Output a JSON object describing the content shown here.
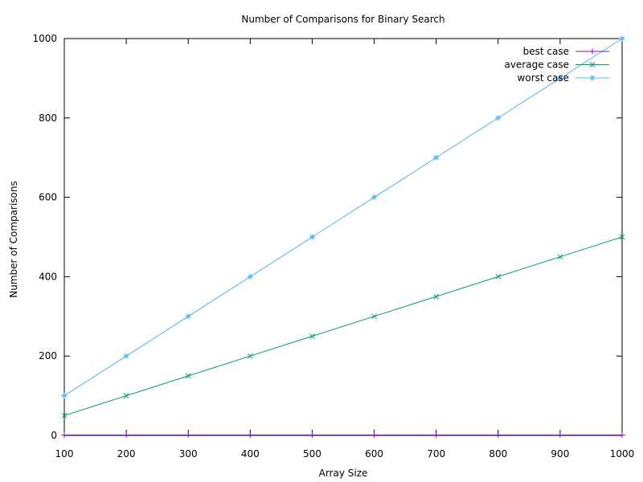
{
  "chart_data": {
    "type": "line",
    "title": "Number of Comparisons for Binary Search",
    "xlabel": "Array Size",
    "ylabel": "Number of Comparisons",
    "xlim": [
      100,
      1000
    ],
    "ylim": [
      0,
      1000
    ],
    "xticks": [
      100,
      200,
      300,
      400,
      500,
      600,
      700,
      800,
      900,
      1000
    ],
    "yticks": [
      0,
      200,
      400,
      600,
      800,
      1000
    ],
    "grid": false,
    "legend_position": "top-right",
    "x": [
      100,
      200,
      300,
      400,
      500,
      600,
      700,
      800,
      900,
      1000
    ],
    "series": [
      {
        "name": "best case",
        "color": "#9400d3",
        "marker": "plus",
        "values": [
          1,
          1,
          1,
          1,
          1,
          1,
          1,
          1,
          1,
          1
        ]
      },
      {
        "name": "average case",
        "color": "#009e73",
        "marker": "cross",
        "values": [
          50,
          100,
          150,
          200,
          250,
          300,
          350,
          400,
          450,
          500
        ]
      },
      {
        "name": "worst case",
        "color": "#56b4e9",
        "marker": "star",
        "values": [
          100,
          200,
          300,
          400,
          500,
          600,
          700,
          800,
          900,
          1000
        ]
      }
    ]
  }
}
